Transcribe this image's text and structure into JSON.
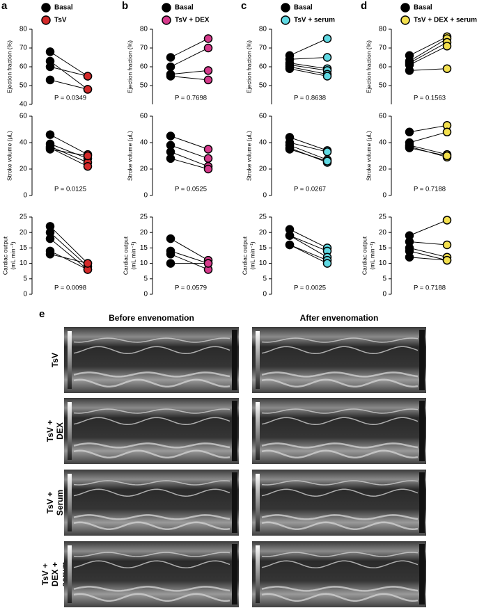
{
  "chart_data": [
    {
      "type": "paired",
      "panel": "a",
      "series": [
        {
          "name": "Basal",
          "color": "#000000"
        },
        {
          "name": "TsV",
          "color": "#d42a2a"
        }
      ],
      "plots": [
        {
          "ylabel": "Ejection fraction (%)",
          "ylim": [
            40,
            80
          ],
          "yticks": [
            40,
            50,
            60,
            70,
            80
          ],
          "p_label": "P = 0.0349",
          "series": [
            {
              "values": [
                68,
                63,
                60,
                53
              ]
            },
            {
              "values": [
                55,
                48,
                55,
                48
              ]
            }
          ]
        },
        {
          "ylabel": "Stroke volume (μL)",
          "ylim": [
            0,
            60
          ],
          "yticks": [
            0,
            20,
            40,
            60
          ],
          "p_label": "P = 0.0125",
          "series": [
            {
              "values": [
                46,
                39,
                37,
                36,
                35
              ]
            },
            {
              "values": [
                31,
                28,
                25,
                22,
                30
              ]
            }
          ]
        },
        {
          "ylabel": [
            "Cardiac output",
            "(mL min⁻¹)"
          ],
          "ylim": [
            0,
            25
          ],
          "yticks": [
            0,
            5,
            10,
            15,
            20,
            25
          ],
          "p_label": "P = 0.0098",
          "series": [
            {
              "values": [
                22,
                20,
                18,
                14,
                13
              ]
            },
            {
              "values": [
                10,
                9,
                8,
                8,
                10
              ]
            }
          ]
        }
      ]
    },
    {
      "type": "paired",
      "panel": "b",
      "series": [
        {
          "name": "Basal",
          "color": "#000000"
        },
        {
          "name": "TsV + DEX",
          "color": "#d63a8c"
        }
      ],
      "plots": [
        {
          "ylabel": "Ejection fraction (%)",
          "ylim": [
            40,
            80
          ],
          "yticks": [
            50,
            60,
            70,
            80
          ],
          "p_label": "P = 0.7698",
          "series": [
            {
              "values": [
                65,
                60,
                56,
                55
              ]
            },
            {
              "values": [
                75,
                70,
                58,
                53
              ]
            }
          ]
        },
        {
          "ylabel": "Stroke volume (μL)",
          "ylim": [
            0,
            60
          ],
          "yticks": [
            0,
            20,
            40,
            60
          ],
          "p_label": "P = 0.0525",
          "series": [
            {
              "values": [
                45,
                38,
                33,
                28
              ]
            },
            {
              "values": [
                35,
                28,
                22,
                20
              ]
            }
          ]
        },
        {
          "ylabel": [
            "Cardiac output",
            "(mL min⁻¹)"
          ],
          "ylim": [
            0,
            25
          ],
          "yticks": [
            0,
            5,
            10,
            15,
            20,
            25
          ],
          "p_label": "P = 0.0579",
          "series": [
            {
              "values": [
                18,
                14,
                13,
                10
              ]
            },
            {
              "values": [
                11,
                10,
                8,
                10
              ]
            }
          ]
        }
      ]
    },
    {
      "type": "paired",
      "panel": "c",
      "series": [
        {
          "name": "Basal",
          "color": "#000000"
        },
        {
          "name": "TsV + serum",
          "color": "#5fd8e2"
        }
      ],
      "plots": [
        {
          "ylabel": "Ejection fraction (%)",
          "ylim": [
            40,
            80
          ],
          "yticks": [
            50,
            60,
            70,
            80
          ],
          "p_label": "P = 0.8638",
          "series": [
            {
              "values": [
                66,
                64,
                62,
                61,
                60,
                59
              ]
            },
            {
              "values": [
                75,
                65,
                59,
                58,
                56,
                55
              ]
            }
          ]
        },
        {
          "ylabel": "Stroke volume (μL)",
          "ylim": [
            0,
            60
          ],
          "yticks": [
            0,
            20,
            40,
            60
          ],
          "p_label": "P = 0.0267",
          "series": [
            {
              "values": [
                44,
                40,
                38,
                36,
                35
              ]
            },
            {
              "values": [
                34,
                33,
                27,
                25,
                26
              ]
            }
          ]
        },
        {
          "ylabel": [
            "Cardiac output",
            "(mL min⁻¹)"
          ],
          "ylim": [
            0,
            25
          ],
          "yticks": [
            0,
            5,
            10,
            15,
            20,
            25
          ],
          "p_label": "P = 0.0025",
          "series": [
            {
              "values": [
                21,
                19,
                19,
                16,
                16
              ]
            },
            {
              "values": [
                15,
                14,
                12,
                11,
                10
              ]
            }
          ]
        }
      ]
    },
    {
      "type": "paired",
      "panel": "d",
      "series": [
        {
          "name": "Basal",
          "color": "#000000"
        },
        {
          "name": "TsV + DEX + serum",
          "color": "#f3e04e"
        }
      ],
      "plots": [
        {
          "ylabel": "Ejection fraction (%)",
          "ylim": [
            40,
            80
          ],
          "yticks": [
            50,
            60,
            70,
            80
          ],
          "p_label": "P = 0.1563",
          "series": [
            {
              "values": [
                66,
                63,
                62,
                61,
                58
              ]
            },
            {
              "values": [
                76,
                75,
                73,
                71,
                59
              ]
            }
          ]
        },
        {
          "ylabel": "Stroke volume (μL)",
          "ylim": [
            0,
            60
          ],
          "yticks": [
            0,
            20,
            40,
            60
          ],
          "p_label": "P = 0.7188",
          "series": [
            {
              "values": [
                48,
                40,
                38,
                37,
                36
              ]
            },
            {
              "values": [
                53,
                48,
                31,
                29,
                30
              ]
            }
          ]
        },
        {
          "ylabel": [
            "Cardiac output",
            "(mL min⁻¹)"
          ],
          "ylim": [
            0,
            25
          ],
          "yticks": [
            0,
            5,
            10,
            15,
            20,
            25
          ],
          "p_label": "P = 0.7188",
          "series": [
            {
              "values": [
                19,
                17,
                15,
                14,
                12
              ]
            },
            {
              "values": [
                24,
                16,
                12,
                11,
                11
              ]
            }
          ]
        }
      ]
    }
  ],
  "panel_e": {
    "label": "e",
    "columns": [
      "Before envenomation",
      "After envenomation"
    ],
    "rows": [
      [
        "TsV"
      ],
      [
        "TsV +",
        "DEX"
      ],
      [
        "TsV +",
        "Serum"
      ],
      [
        "TsV +",
        "DEX +",
        "serum"
      ]
    ]
  }
}
